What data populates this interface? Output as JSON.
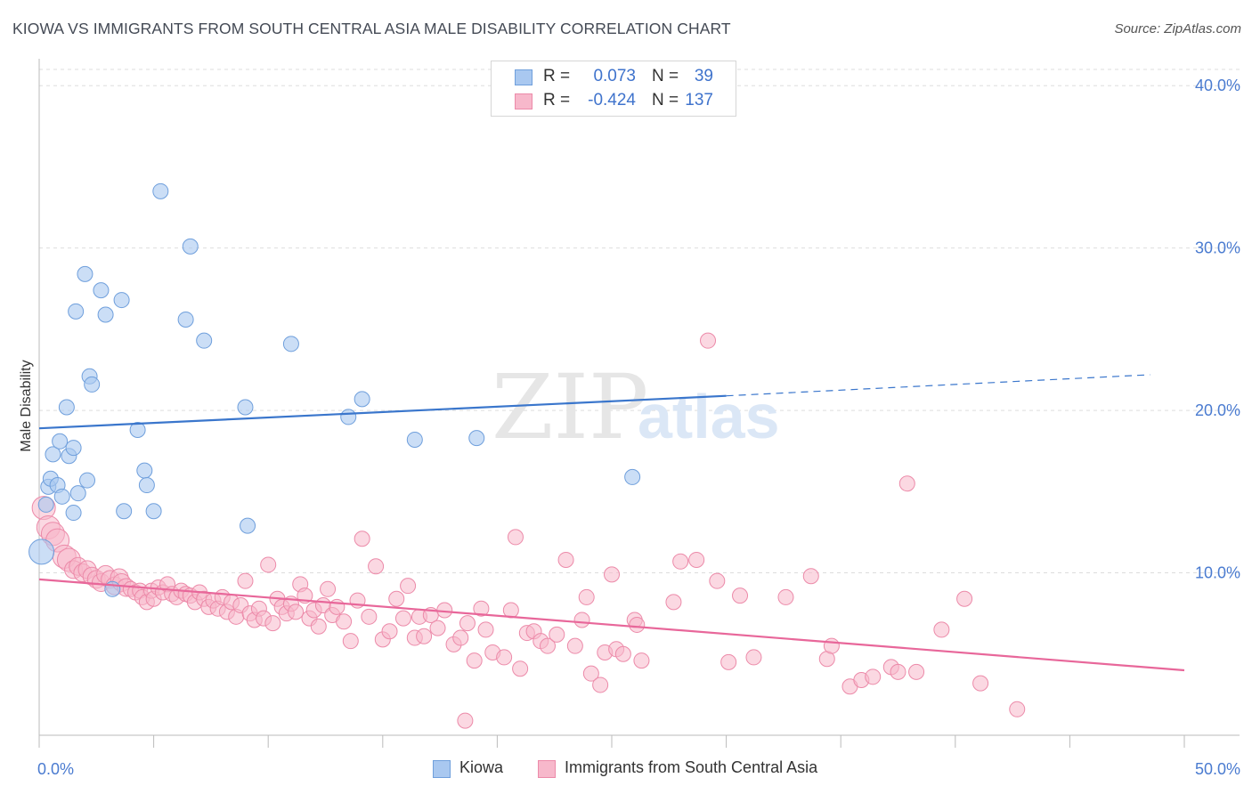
{
  "header": {
    "title": "KIOWA VS IMMIGRANTS FROM SOUTH CENTRAL ASIA MALE DISABILITY CORRELATION CHART",
    "source": "Source: ZipAtlas.com"
  },
  "watermark": {
    "zip": "ZIP",
    "atlas": "atlas"
  },
  "legend_stats": [
    {
      "r_label": "R =",
      "r_value": "0.073",
      "n_label": "N =",
      "n_value": "39",
      "color": "#a9c8f0"
    },
    {
      "r_label": "R =",
      "r_value": "-0.424",
      "n_label": "N =",
      "n_value": "137",
      "color": "#f7b8cb"
    }
  ],
  "legend_bottom": [
    {
      "label": "Kiowa",
      "color": "#a9c8f0"
    },
    {
      "label": "Immigrants from South Central Asia",
      "color": "#f7b8cb"
    }
  ],
  "colors": {
    "kiowa_fill": "#a9c8f0",
    "kiowa_stroke": "#6f9fdc",
    "kiowa_line": "#3a76cc",
    "imm_fill": "#f7b8cb",
    "imm_stroke": "#ec8aa9",
    "imm_line": "#e8679a",
    "grid": "#dddddd",
    "tick_label": "#4a7bd0"
  },
  "chart_data": {
    "type": "scatter",
    "ylabel": "Male Disability",
    "xlabel": "",
    "xlim": [
      0,
      50
    ],
    "ylim": [
      0,
      41
    ],
    "x_tick_labels": [
      {
        "value": 0,
        "label": "0.0%"
      },
      {
        "value": 50,
        "label": "50.0%"
      }
    ],
    "y_tick_labels": [
      {
        "value": 10,
        "label": "10.0%"
      },
      {
        "value": 20,
        "label": "20.0%"
      },
      {
        "value": 30,
        "label": "30.0%"
      },
      {
        "value": 40,
        "label": "40.0%"
      }
    ],
    "grid": true,
    "legend_position": "top-center",
    "series": [
      {
        "name": "Kiowa",
        "points": [
          [
            0.1,
            11.3
          ],
          [
            0.3,
            14.2
          ],
          [
            0.4,
            15.3
          ],
          [
            0.5,
            15.8
          ],
          [
            0.6,
            17.3
          ],
          [
            0.8,
            15.4
          ],
          [
            0.9,
            18.1
          ],
          [
            1.0,
            14.7
          ],
          [
            1.2,
            20.2
          ],
          [
            1.3,
            17.2
          ],
          [
            1.5,
            17.7
          ],
          [
            1.5,
            13.7
          ],
          [
            1.6,
            26.1
          ],
          [
            1.7,
            14.9
          ],
          [
            2.0,
            28.4
          ],
          [
            2.1,
            15.7
          ],
          [
            2.2,
            22.1
          ],
          [
            2.3,
            21.6
          ],
          [
            2.7,
            27.4
          ],
          [
            2.9,
            25.9
          ],
          [
            3.2,
            9.0
          ],
          [
            3.6,
            26.8
          ],
          [
            3.7,
            13.8
          ],
          [
            4.3,
            18.8
          ],
          [
            4.6,
            16.3
          ],
          [
            4.7,
            15.4
          ],
          [
            5.0,
            13.8
          ],
          [
            5.3,
            33.5
          ],
          [
            6.4,
            25.6
          ],
          [
            6.6,
            30.1
          ],
          [
            7.2,
            24.3
          ],
          [
            9.0,
            20.2
          ],
          [
            9.1,
            12.9
          ],
          [
            11.0,
            24.1
          ],
          [
            13.5,
            19.6
          ],
          [
            14.1,
            20.7
          ],
          [
            16.4,
            18.2
          ],
          [
            19.1,
            18.3
          ],
          [
            25.9,
            15.9
          ]
        ],
        "trend": {
          "x0": 0,
          "y0": 18.9,
          "x1": 30,
          "y1": 20.9,
          "dash_to_x": 48.5,
          "dash_to_y": 22.2
        }
      },
      {
        "name": "Immigrants from South Central Asia",
        "points": [
          [
            0.2,
            14.0
          ],
          [
            0.4,
            12.8
          ],
          [
            0.6,
            12.4
          ],
          [
            0.8,
            12.0
          ],
          [
            1.1,
            11.0
          ],
          [
            1.3,
            10.8
          ],
          [
            1.5,
            10.2
          ],
          [
            1.7,
            10.4
          ],
          [
            1.9,
            10.0
          ],
          [
            2.1,
            10.2
          ],
          [
            2.3,
            9.8
          ],
          [
            2.5,
            9.6
          ],
          [
            2.7,
            9.4
          ],
          [
            2.9,
            9.9
          ],
          [
            3.1,
            9.6
          ],
          [
            3.3,
            9.2
          ],
          [
            3.5,
            9.7
          ],
          [
            3.6,
            9.4
          ],
          [
            3.8,
            9.1
          ],
          [
            4.0,
            9.0
          ],
          [
            4.2,
            8.8
          ],
          [
            4.4,
            8.9
          ],
          [
            4.5,
            8.5
          ],
          [
            4.7,
            8.2
          ],
          [
            4.9,
            8.9
          ],
          [
            5.0,
            8.4
          ],
          [
            5.2,
            9.1
          ],
          [
            5.4,
            8.8
          ],
          [
            5.6,
            9.3
          ],
          [
            5.8,
            8.7
          ],
          [
            6.0,
            8.5
          ],
          [
            6.2,
            8.9
          ],
          [
            6.4,
            8.7
          ],
          [
            6.6,
            8.6
          ],
          [
            6.8,
            8.2
          ],
          [
            7.0,
            8.8
          ],
          [
            7.2,
            8.4
          ],
          [
            7.4,
            7.9
          ],
          [
            7.6,
            8.3
          ],
          [
            7.8,
            7.8
          ],
          [
            8.0,
            8.5
          ],
          [
            8.2,
            7.6
          ],
          [
            8.4,
            8.2
          ],
          [
            8.6,
            7.3
          ],
          [
            8.8,
            8.0
          ],
          [
            9.0,
            9.5
          ],
          [
            9.2,
            7.5
          ],
          [
            9.4,
            7.1
          ],
          [
            9.6,
            7.8
          ],
          [
            9.8,
            7.2
          ],
          [
            10.0,
            10.5
          ],
          [
            10.2,
            6.9
          ],
          [
            10.4,
            8.4
          ],
          [
            10.6,
            7.9
          ],
          [
            10.8,
            7.5
          ],
          [
            11.0,
            8.1
          ],
          [
            11.2,
            7.6
          ],
          [
            11.4,
            9.3
          ],
          [
            11.6,
            8.6
          ],
          [
            11.8,
            7.2
          ],
          [
            12.0,
            7.7
          ],
          [
            12.2,
            6.7
          ],
          [
            12.4,
            8.0
          ],
          [
            12.6,
            9.0
          ],
          [
            12.8,
            7.4
          ],
          [
            13.0,
            7.9
          ],
          [
            13.3,
            7.0
          ],
          [
            13.6,
            5.8
          ],
          [
            13.9,
            8.3
          ],
          [
            14.1,
            12.1
          ],
          [
            14.4,
            7.3
          ],
          [
            14.7,
            10.4
          ],
          [
            15.0,
            5.9
          ],
          [
            15.3,
            6.4
          ],
          [
            15.6,
            8.4
          ],
          [
            15.9,
            7.2
          ],
          [
            16.1,
            9.2
          ],
          [
            16.4,
            6.0
          ],
          [
            16.6,
            7.3
          ],
          [
            16.8,
            6.1
          ],
          [
            17.1,
            7.4
          ],
          [
            17.4,
            6.6
          ],
          [
            17.7,
            7.7
          ],
          [
            18.1,
            5.6
          ],
          [
            18.4,
            6.0
          ],
          [
            18.7,
            6.9
          ],
          [
            19.0,
            4.6
          ],
          [
            19.3,
            7.8
          ],
          [
            19.5,
            6.5
          ],
          [
            19.8,
            5.1
          ],
          [
            20.3,
            4.8
          ],
          [
            20.6,
            7.7
          ],
          [
            21.0,
            4.1
          ],
          [
            20.8,
            12.2
          ],
          [
            21.3,
            6.3
          ],
          [
            21.6,
            6.4
          ],
          [
            21.9,
            5.8
          ],
          [
            22.2,
            5.5
          ],
          [
            22.6,
            6.2
          ],
          [
            23.0,
            10.8
          ],
          [
            23.4,
            5.5
          ],
          [
            23.7,
            7.1
          ],
          [
            23.9,
            8.5
          ],
          [
            24.1,
            3.8
          ],
          [
            24.5,
            3.1
          ],
          [
            24.7,
            5.1
          ],
          [
            25.0,
            9.9
          ],
          [
            25.2,
            5.3
          ],
          [
            25.5,
            5.0
          ],
          [
            26.0,
            7.1
          ],
          [
            26.1,
            6.8
          ],
          [
            26.3,
            4.6
          ],
          [
            27.7,
            8.2
          ],
          [
            28.0,
            10.7
          ],
          [
            28.7,
            10.8
          ],
          [
            29.2,
            24.3
          ],
          [
            29.6,
            9.5
          ],
          [
            30.1,
            4.5
          ],
          [
            30.6,
            8.6
          ],
          [
            31.2,
            4.8
          ],
          [
            32.6,
            8.5
          ],
          [
            33.7,
            9.8
          ],
          [
            34.4,
            4.7
          ],
          [
            34.6,
            5.5
          ],
          [
            35.4,
            3.0
          ],
          [
            35.9,
            3.4
          ],
          [
            36.4,
            3.6
          ],
          [
            37.2,
            4.2
          ],
          [
            37.5,
            3.9
          ],
          [
            37.9,
            15.5
          ],
          [
            38.3,
            3.9
          ],
          [
            39.4,
            6.5
          ],
          [
            40.4,
            8.4
          ],
          [
            41.1,
            3.2
          ],
          [
            42.7,
            1.6
          ],
          [
            18.6,
            0.9
          ]
        ],
        "trend": {
          "x0": 0,
          "y0": 9.6,
          "x1": 50,
          "y1": 4.0
        }
      }
    ]
  }
}
